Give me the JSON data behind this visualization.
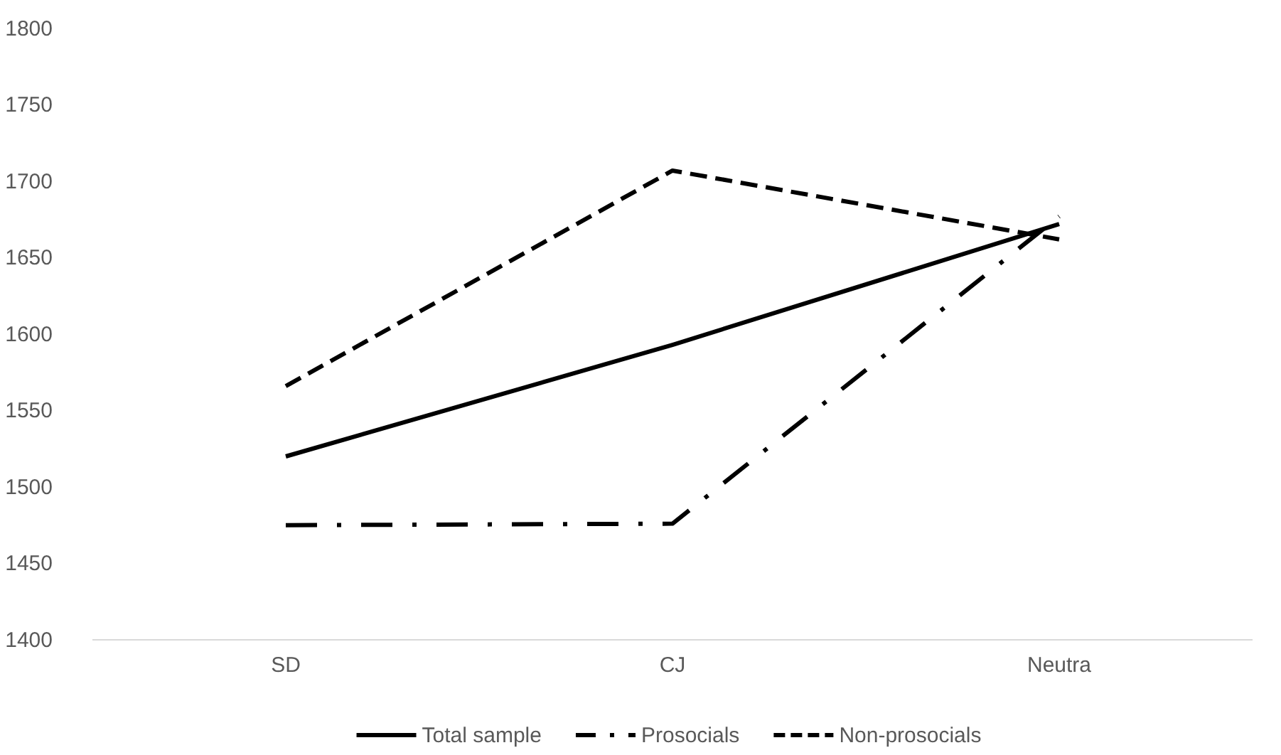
{
  "chart_data": {
    "type": "line",
    "categories": [
      "SD",
      "CJ",
      "Neutra"
    ],
    "series": [
      {
        "name": "Total sample",
        "color": "#000000",
        "line_style": "solid",
        "values": [
          1520,
          1593,
          1672
        ]
      },
      {
        "name": "Prosocials",
        "color": "#000000",
        "line_style": "dashdot",
        "values": [
          1475,
          1476,
          1677
        ]
      },
      {
        "name": "Non-prosocials",
        "color": "#000000",
        "line_style": "dashed",
        "values": [
          1566,
          1707,
          1662
        ]
      }
    ],
    "ylim": [
      1400,
      1800
    ],
    "yticks": [
      1400,
      1450,
      1500,
      1550,
      1600,
      1650,
      1700,
      1750,
      1800
    ],
    "grid": false,
    "legend": "bottom",
    "marker": "none"
  }
}
